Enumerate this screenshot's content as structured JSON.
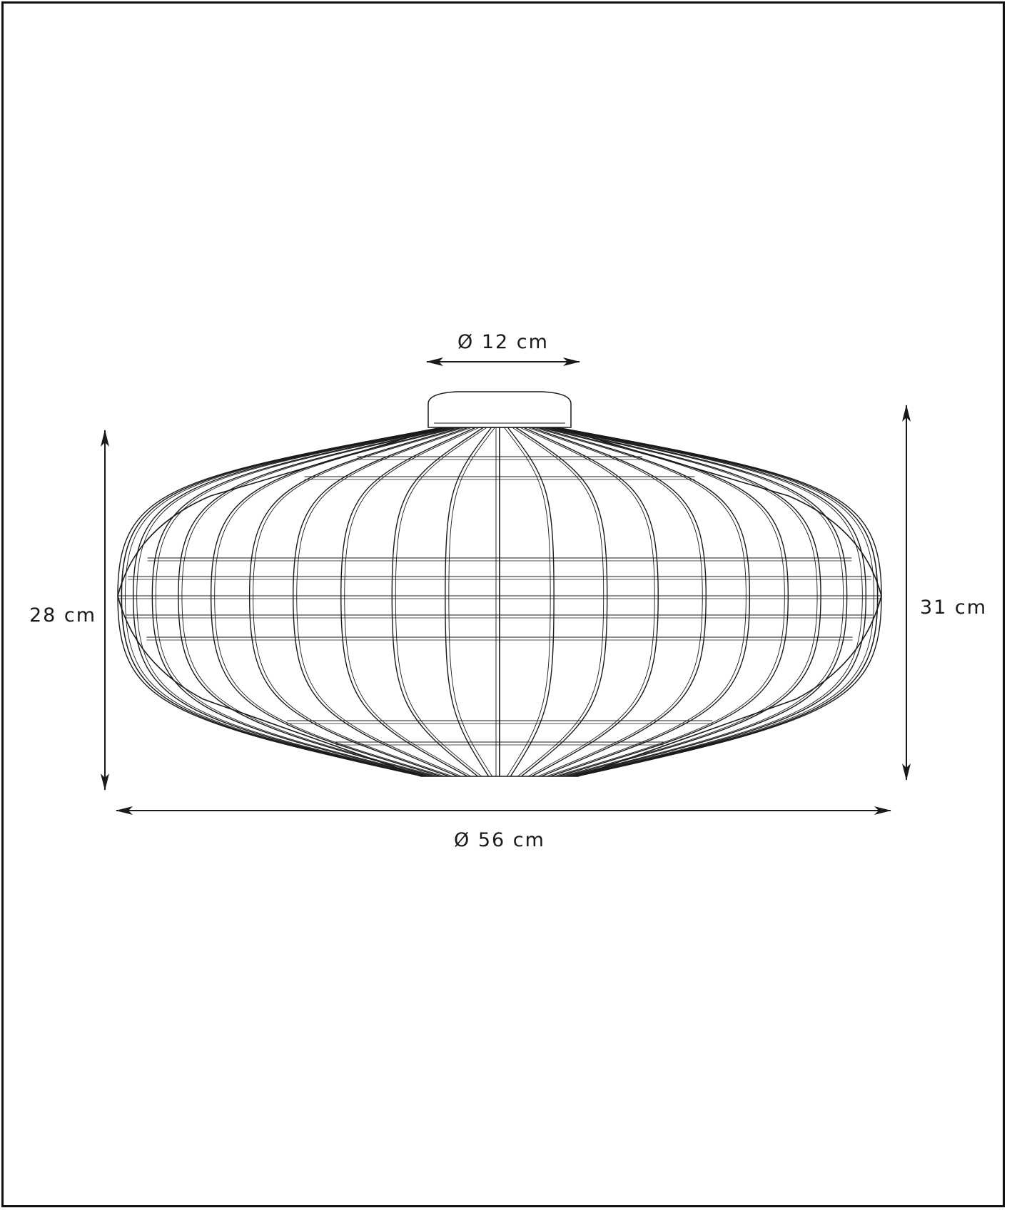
{
  "drawing": {
    "subject": "ceiling-lamp",
    "line_color": "#1a1a1a",
    "background_color": "#ffffff"
  },
  "dimensions": {
    "canopy_diameter": "Ø 12 cm",
    "overall_diameter": "Ø 56 cm",
    "shade_height": "28 cm",
    "total_height": "31 cm"
  }
}
